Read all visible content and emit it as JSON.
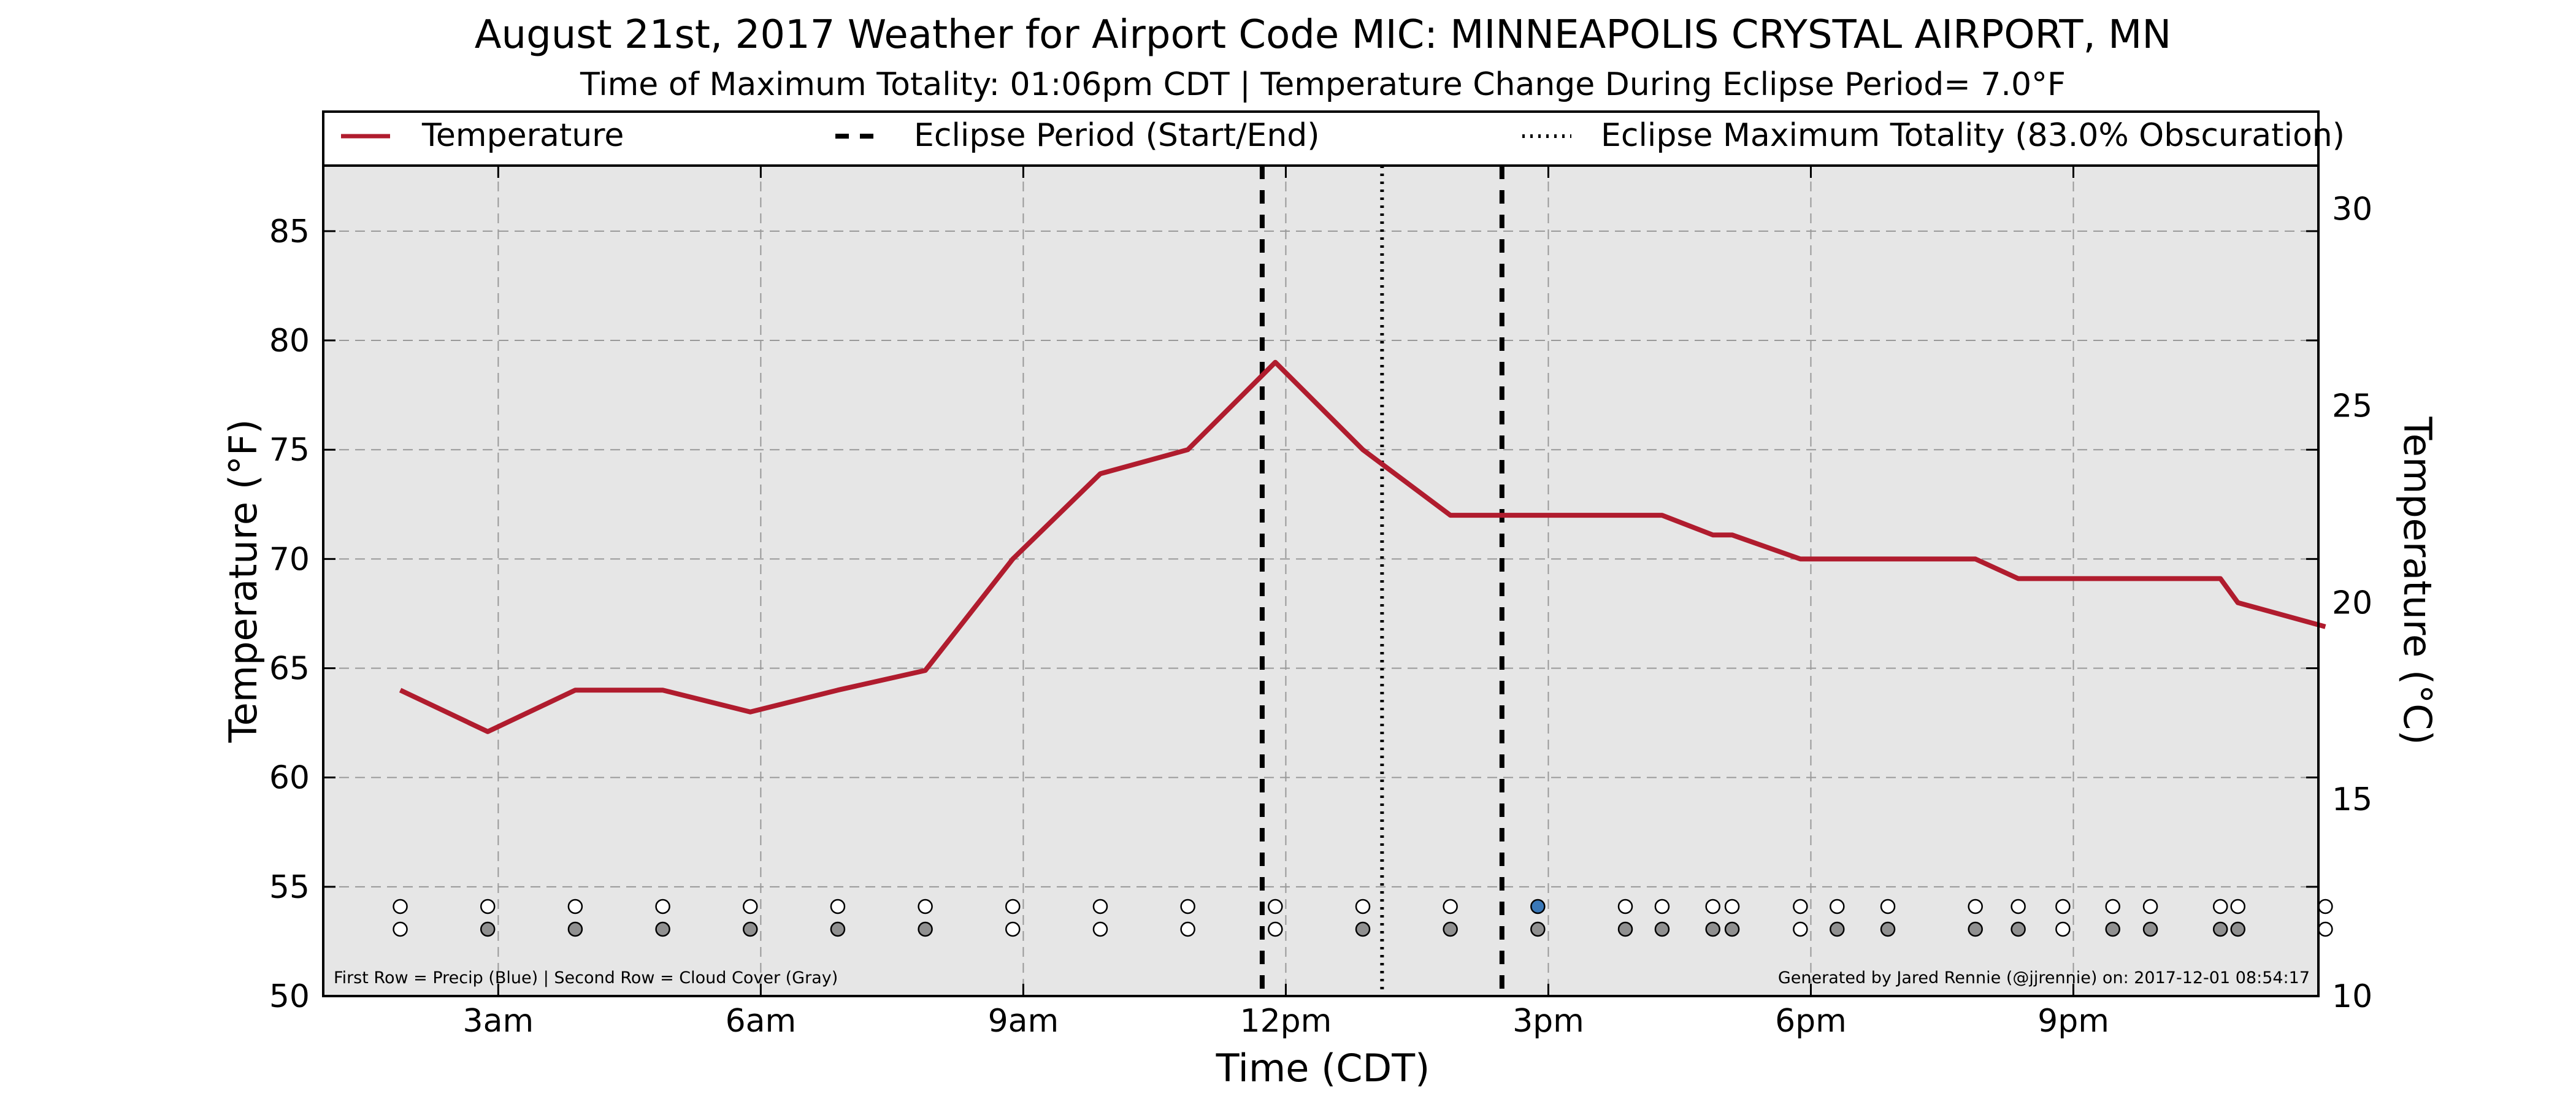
{
  "chart_data": {
    "type": "line",
    "title": "August 21st, 2017 Weather for Airport Code MIC: MINNEAPOLIS CRYSTAL AIRPORT, MN",
    "subtitle": "Time of Maximum Totality: 01:06pm CDT | Temperature Change During Eclipse Period= 7.0°F",
    "xlabel": "Time (CDT)",
    "ylabel": "Temperature (°F)",
    "ylabel_right": "Temperature (°C)",
    "xlim": [
      1.0,
      23.8
    ],
    "ylim": [
      50,
      88
    ],
    "ylim_right": [
      10,
      31.1
    ],
    "x_ticks": [
      {
        "x": 3,
        "label": "3am"
      },
      {
        "x": 6,
        "label": "6am"
      },
      {
        "x": 9,
        "label": "9am"
      },
      {
        "x": 12,
        "label": "12pm"
      },
      {
        "x": 15,
        "label": "3pm"
      },
      {
        "x": 18,
        "label": "6pm"
      },
      {
        "x": 21,
        "label": "9pm"
      }
    ],
    "y_ticks": [
      "50",
      "55",
      "60",
      "65",
      "70",
      "75",
      "80",
      "85"
    ],
    "y_ticks_right": [
      "10",
      "15",
      "20",
      "25",
      "30"
    ],
    "grid": true,
    "legend_position": "top",
    "legend": {
      "temperature": "Temperature",
      "eclipse_period": "Eclipse Period (Start/End)",
      "eclipse_max": "Eclipse Maximum Totality (83.0% Obscuration)"
    },
    "series": [
      {
        "name": "Temperature",
        "x": [
          1.88,
          2.88,
          3.88,
          4.88,
          5.88,
          6.88,
          7.88,
          8.88,
          9.88,
          10.88,
          11.88,
          12.88,
          13.88,
          14.88,
          15.88,
          16.3,
          16.88,
          17.1,
          17.88,
          18.3,
          18.88,
          19.88,
          20.37,
          20.88,
          21.45,
          21.88,
          22.68,
          22.88,
          23.88
        ],
        "y": [
          64.0,
          62.1,
          64.0,
          64.0,
          63.0,
          64.0,
          64.9,
          70.0,
          73.9,
          75.0,
          79.0,
          75.0,
          72.0,
          72.0,
          72.0,
          72.0,
          71.1,
          71.1,
          70.0,
          70.0,
          70.0,
          70.0,
          69.1,
          69.1,
          69.1,
          69.1,
          69.1,
          68.0,
          66.9
        ]
      }
    ],
    "eclipse_start": 11.73,
    "eclipse_max": 13.1,
    "eclipse_end": 14.47,
    "obs_x": [
      1.88,
      2.88,
      3.88,
      4.88,
      5.88,
      6.88,
      7.88,
      8.88,
      9.88,
      10.88,
      11.88,
      12.88,
      13.88,
      14.88,
      15.88,
      16.3,
      16.88,
      17.1,
      17.88,
      18.3,
      18.88,
      19.88,
      20.37,
      20.88,
      21.45,
      21.88,
      22.68,
      22.88,
      23.88
    ],
    "precip": [
      0,
      0,
      0,
      0,
      0,
      0,
      0,
      0,
      0,
      0,
      0,
      0,
      0,
      1,
      0,
      0,
      0,
      0,
      0,
      0,
      0,
      0,
      0,
      0,
      0,
      0,
      0,
      0,
      0
    ],
    "cloud": [
      0,
      1,
      1,
      1,
      1,
      1,
      1,
      0,
      0,
      0,
      0,
      1,
      1,
      1,
      1,
      1,
      1,
      1,
      0,
      1,
      1,
      1,
      1,
      0,
      1,
      1,
      1,
      1,
      0
    ],
    "footer_left": "First Row = Precip (Blue) | Second Row = Cloud Cover (Gray)",
    "footer_right": "Generated by Jared Rennie (@jjrennie) on: 2017-12-01 08:54:17",
    "colors": {
      "temperature": "#b01c2e",
      "plot_background": "#e6e6e6",
      "precip_marker": "#3a78b8",
      "cloud_marker": "#909090",
      "empty_marker": "#ffffff"
    }
  }
}
